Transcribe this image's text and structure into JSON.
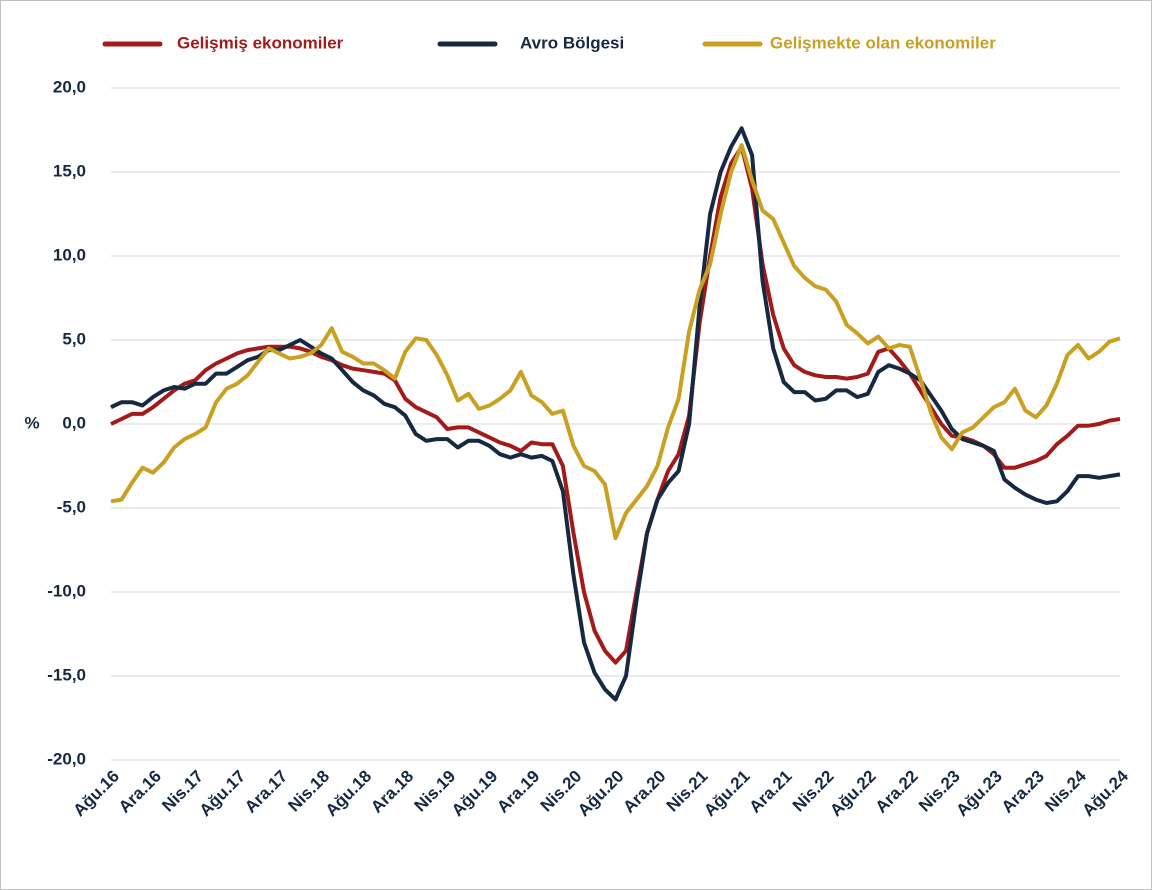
{
  "chart_data": {
    "type": "line",
    "ylabel": "%",
    "categories": [
      "Ağu.16",
      null,
      null,
      null,
      "Ara.16",
      null,
      null,
      null,
      "Nis.17",
      null,
      null,
      null,
      "Ağu.17",
      null,
      null,
      null,
      "Ara.17",
      null,
      null,
      null,
      "Nis.18",
      null,
      null,
      null,
      "Ağu.18",
      null,
      null,
      null,
      "Ara.18",
      null,
      null,
      null,
      "Nis.19",
      null,
      null,
      null,
      "Ağu.19",
      null,
      null,
      null,
      "Ara.19",
      null,
      null,
      null,
      "Nis.20",
      null,
      null,
      null,
      "Ağu.20",
      null,
      null,
      null,
      "Ara.20",
      null,
      null,
      null,
      "Nis.21",
      null,
      null,
      null,
      "Ağu.21",
      null,
      null,
      null,
      "Ara.21",
      null,
      null,
      null,
      "Nis.22",
      null,
      null,
      null,
      "Ağu.22",
      null,
      null,
      null,
      "Ara.22",
      null,
      null,
      null,
      "Nis.23",
      null,
      null,
      null,
      "Ağu.23",
      null,
      null,
      null,
      "Ara.23",
      null,
      null,
      null,
      "Nis.24",
      null,
      null,
      null,
      "Ağu.24"
    ],
    "series": [
      {
        "name": "Gelişmiş ekonomiler",
        "color": "#a31a1a",
        "values": [
          0.0,
          0.3,
          0.6,
          0.6,
          1.0,
          1.5,
          2.0,
          2.4,
          2.6,
          3.2,
          3.6,
          3.9,
          4.2,
          4.4,
          4.5,
          4.6,
          4.6,
          4.6,
          4.5,
          4.3,
          4.0,
          3.8,
          3.5,
          3.3,
          3.2,
          3.1,
          3.0,
          2.6,
          1.5,
          1.0,
          0.7,
          0.4,
          -0.3,
          -0.2,
          -0.2,
          -0.5,
          -0.8,
          -1.1,
          -1.3,
          -1.6,
          -1.1,
          -1.2,
          -1.2,
          -2.5,
          -6.5,
          -10.0,
          -12.3,
          -13.5,
          -14.2,
          -13.5,
          -10.0,
          -6.5,
          -4.5,
          -2.8,
          -1.8,
          0.5,
          6.0,
          10.0,
          13.5,
          15.5,
          16.5,
          14.0,
          9.5,
          6.5,
          4.5,
          3.5,
          3.1,
          2.9,
          2.8,
          2.8,
          2.7,
          2.8,
          3.0,
          4.3,
          4.5,
          3.8,
          3.0,
          2.0,
          1.0,
          0.0,
          -0.7,
          -0.8,
          -1.0,
          -1.3,
          -1.8,
          -2.6,
          -2.6,
          -2.4,
          -2.2,
          -1.9,
          -1.2,
          -0.7,
          -0.1,
          -0.1,
          0.0,
          0.2,
          0.3
        ]
      },
      {
        "name": "Avro Bölgesi",
        "color": "#172841",
        "values": [
          1.0,
          1.3,
          1.3,
          1.1,
          1.6,
          2.0,
          2.2,
          2.1,
          2.4,
          2.4,
          3.0,
          3.0,
          3.4,
          3.8,
          4.0,
          4.4,
          4.4,
          4.7,
          5.0,
          4.6,
          4.2,
          3.9,
          3.2,
          2.5,
          2.0,
          1.7,
          1.2,
          1.0,
          0.5,
          -0.6,
          -1.0,
          -0.9,
          -0.9,
          -1.4,
          -1.0,
          -1.0,
          -1.3,
          -1.8,
          -2.0,
          -1.8,
          -2.0,
          -1.9,
          -2.2,
          -4.0,
          -9.0,
          -13.0,
          -14.8,
          -15.8,
          -16.4,
          -15.0,
          -10.5,
          -6.5,
          -4.5,
          -3.5,
          -2.8,
          0.0,
          7.0,
          12.5,
          15.0,
          16.5,
          17.6,
          16.0,
          8.5,
          4.5,
          2.5,
          1.9,
          1.9,
          1.4,
          1.5,
          2.0,
          2.0,
          1.6,
          1.8,
          3.1,
          3.5,
          3.3,
          3.0,
          2.6,
          1.7,
          0.8,
          -0.3,
          -0.9,
          -1.1,
          -1.3,
          -1.6,
          -3.3,
          -3.8,
          -4.2,
          -4.5,
          -4.7,
          -4.6,
          -4.0,
          -3.1,
          -3.1,
          -3.2,
          -3.1,
          -3.0
        ]
      },
      {
        "name": "Gelişmekte olan ekonomiler",
        "color": "#c9a022",
        "values": [
          -4.6,
          -4.5,
          -3.5,
          -2.6,
          -2.9,
          -2.3,
          -1.4,
          -0.9,
          -0.6,
          -0.2,
          1.3,
          2.1,
          2.4,
          2.9,
          3.7,
          4.5,
          4.2,
          3.9,
          4.0,
          4.2,
          4.7,
          5.7,
          4.3,
          4.0,
          3.6,
          3.6,
          3.2,
          2.7,
          4.3,
          5.1,
          5.0,
          4.1,
          2.9,
          1.4,
          1.8,
          0.9,
          1.1,
          1.5,
          2.0,
          3.1,
          1.7,
          1.3,
          0.6,
          0.8,
          -1.3,
          -2.5,
          -2.8,
          -3.6,
          -6.8,
          -5.3,
          -4.5,
          -3.7,
          -2.5,
          -0.2,
          1.5,
          5.5,
          8.0,
          9.5,
          12.5,
          15.0,
          16.6,
          14.5,
          12.7,
          12.2,
          10.8,
          9.4,
          8.7,
          8.2,
          8.0,
          7.3,
          5.9,
          5.4,
          4.8,
          5.2,
          4.5,
          4.7,
          4.6,
          2.7,
          0.7,
          -0.8,
          -1.5,
          -0.5,
          -0.2,
          0.4,
          1.0,
          1.3,
          2.1,
          0.8,
          0.4,
          1.1,
          2.4,
          4.1,
          4.7,
          3.9,
          4.3,
          4.9,
          5.1
        ]
      }
    ],
    "ylim": [
      -20,
      20
    ],
    "yticks": [
      {
        "value": -20,
        "label": "-20,0"
      },
      {
        "value": -15,
        "label": "-15,0"
      },
      {
        "value": -10,
        "label": "-10,0"
      },
      {
        "value": -5,
        "label": "-5,0"
      },
      {
        "value": 0,
        "label": "0,0"
      },
      {
        "value": 5,
        "label": "5,0"
      },
      {
        "value": 10,
        "label": "10,0"
      },
      {
        "value": 15,
        "label": "15,0"
      },
      {
        "value": 20,
        "label": "20,0"
      }
    ],
    "grid": true,
    "legend": "top"
  }
}
